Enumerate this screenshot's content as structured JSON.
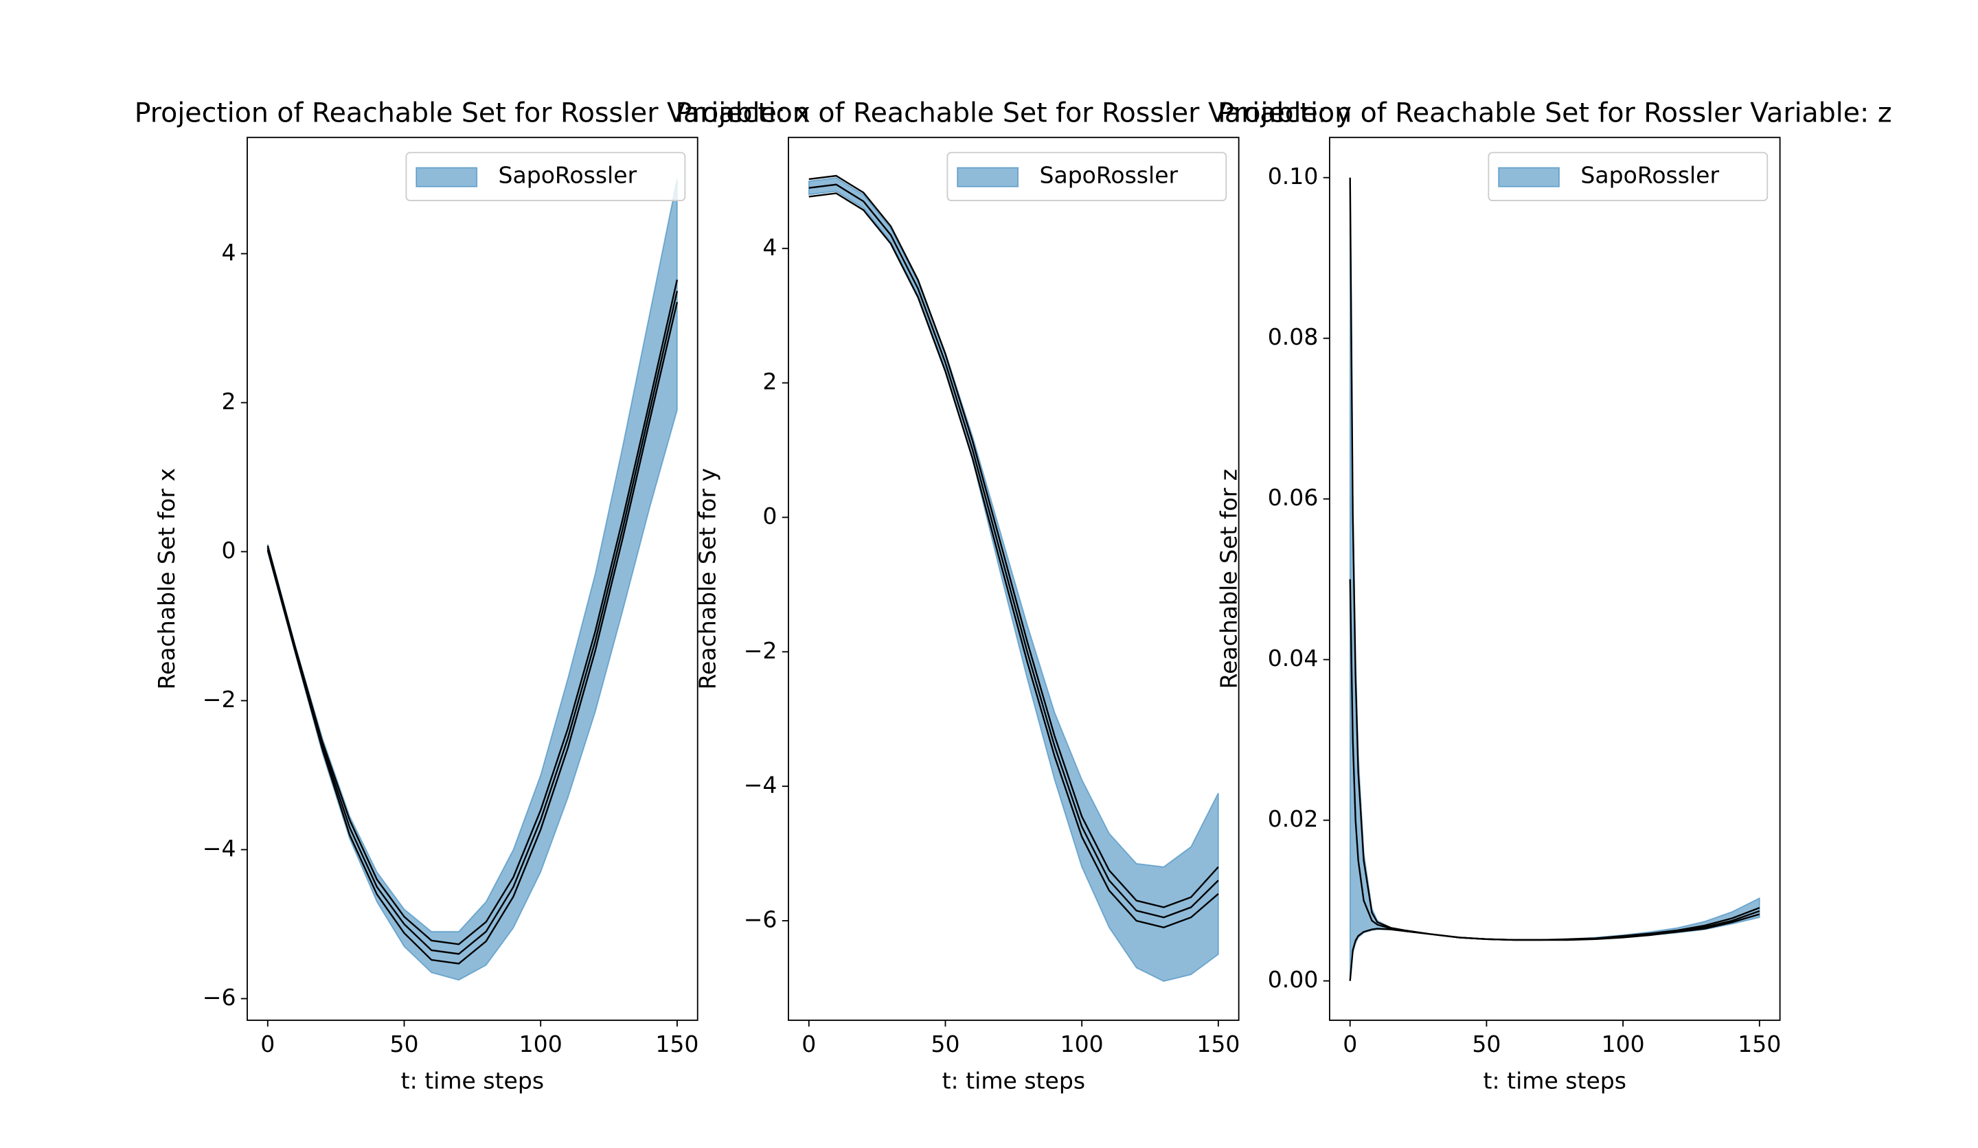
{
  "chart_data": [
    {
      "type": "band",
      "title": "Projection of Reachable Set for Rossler Variable: x",
      "xlabel": "t: time steps",
      "ylabel": "Reachable Set for x",
      "x": [
        0,
        10,
        20,
        30,
        40,
        50,
        60,
        70,
        80,
        90,
        100,
        110,
        120,
        130,
        140,
        150
      ],
      "series": [
        {
          "name": "SapoRossler",
          "color": "#1f77b4",
          "alpha": 0.5,
          "upper": [
            0.1,
            -1.25,
            -2.5,
            -3.55,
            -4.3,
            -4.8,
            -5.1,
            -5.1,
            -4.7,
            -4.0,
            -3.0,
            -1.7,
            -0.3,
            1.4,
            3.2,
            5.0
          ],
          "lower": [
            0.0,
            -1.35,
            -2.7,
            -3.85,
            -4.7,
            -5.3,
            -5.65,
            -5.75,
            -5.55,
            -5.05,
            -4.3,
            -3.3,
            -2.15,
            -0.8,
            0.6,
            1.9
          ]
        }
      ],
      "line_color": "#000000",
      "lines": [
        [
          0.08,
          -1.27,
          -2.55,
          -3.6,
          -4.4,
          -4.9,
          -5.22,
          -5.27,
          -4.97,
          -4.37,
          -3.47,
          -2.37,
          -1.07,
          0.43,
          2.03,
          3.65
        ],
        [
          0.05,
          -1.3,
          -2.6,
          -3.7,
          -4.5,
          -5.0,
          -5.35,
          -5.4,
          -5.1,
          -4.5,
          -3.6,
          -2.5,
          -1.2,
          0.3,
          1.9,
          3.5
        ],
        [
          0.02,
          -1.33,
          -2.65,
          -3.8,
          -4.6,
          -5.12,
          -5.48,
          -5.53,
          -5.23,
          -4.63,
          -3.73,
          -2.63,
          -1.33,
          0.17,
          1.77,
          3.35
        ]
      ],
      "xlim": [
        -7.5,
        157.5
      ],
      "ylim": [
        -6.29,
        5.56
      ],
      "xticks": [
        0,
        50,
        100,
        150
      ],
      "yticks": [
        {
          "value": -6,
          "label": "−6"
        },
        {
          "value": -4,
          "label": "−4"
        },
        {
          "value": -2,
          "label": "−2"
        },
        0,
        2,
        4
      ]
    },
    {
      "type": "band",
      "title": "Projection of Reachable Set for Rossler Variable: y",
      "xlabel": "t: time steps",
      "ylabel": "Reachable Set for y",
      "x": [
        0,
        10,
        20,
        30,
        40,
        50,
        60,
        70,
        80,
        90,
        100,
        110,
        120,
        130,
        140,
        150
      ],
      "series": [
        {
          "name": "SapoRossler",
          "color": "#1f77b4",
          "alpha": 0.5,
          "upper": [
            5.0,
            5.05,
            4.8,
            4.3,
            3.5,
            2.45,
            1.2,
            -0.2,
            -1.6,
            -2.9,
            -3.9,
            -4.7,
            -5.15,
            -5.2,
            -4.9,
            -4.1
          ],
          "lower": [
            4.8,
            4.85,
            4.6,
            4.1,
            3.3,
            2.2,
            0.85,
            -0.8,
            -2.4,
            -3.9,
            -5.2,
            -6.1,
            -6.7,
            -6.9,
            -6.8,
            -6.5
          ]
        }
      ],
      "line_color": "#000000",
      "lines": [
        [
          5.03,
          5.08,
          4.83,
          4.33,
          3.53,
          2.43,
          1.13,
          -0.35,
          -1.85,
          -3.25,
          -4.45,
          -5.25,
          -5.7,
          -5.8,
          -5.65,
          -5.2
        ],
        [
          4.9,
          4.95,
          4.7,
          4.2,
          3.4,
          2.3,
          1.0,
          -0.5,
          -2.0,
          -3.4,
          -4.6,
          -5.4,
          -5.85,
          -5.95,
          -5.8,
          -5.4
        ],
        [
          4.77,
          4.82,
          4.57,
          4.07,
          3.27,
          2.17,
          0.87,
          -0.65,
          -2.15,
          -3.55,
          -4.75,
          -5.55,
          -6.0,
          -6.1,
          -5.95,
          -5.6
        ]
      ],
      "xlim": [
        -7.5,
        157.5
      ],
      "ylim": [
        -7.48,
        5.65
      ],
      "xticks": [
        0,
        50,
        100,
        150
      ],
      "yticks": [
        {
          "value": -6,
          "label": "−6"
        },
        {
          "value": -4,
          "label": "−4"
        },
        {
          "value": -2,
          "label": "−2"
        },
        0,
        2,
        4
      ]
    },
    {
      "type": "band",
      "title": "Projection of Reachable Set for Rossler Variable: z",
      "xlabel": "t: time steps",
      "ylabel": "Reachable Set for z",
      "x": [
        0,
        1,
        2,
        3,
        5,
        8,
        10,
        15,
        20,
        30,
        40,
        50,
        60,
        70,
        80,
        90,
        100,
        110,
        120,
        130,
        140,
        150
      ],
      "series": [
        {
          "name": "SapoRossler",
          "color": "#1f77b4",
          "alpha": 0.5,
          "upper": [
            0.1,
            0.06,
            0.04,
            0.028,
            0.016,
            0.009,
            0.0075,
            0.0066,
            0.0063,
            0.0058,
            0.0054,
            0.0052,
            0.0051,
            0.0051,
            0.0052,
            0.0054,
            0.0057,
            0.0061,
            0.0066,
            0.0074,
            0.0086,
            0.0103
          ],
          "lower": [
            0.0,
            0.0035,
            0.0047,
            0.0054,
            0.006,
            0.0063,
            0.0064,
            0.0064,
            0.0062,
            0.0058,
            0.0054,
            0.0052,
            0.0051,
            0.0051,
            0.0051,
            0.0052,
            0.0054,
            0.0057,
            0.006,
            0.0064,
            0.0071,
            0.0079
          ]
        }
      ],
      "line_color": "#000000",
      "lines": [
        [
          0.1,
          0.058,
          0.038,
          0.026,
          0.015,
          0.0085,
          0.0073,
          0.0066,
          0.0063,
          0.0058,
          0.0054,
          0.0052,
          0.0051,
          0.0051,
          0.0052,
          0.0053,
          0.0056,
          0.0059,
          0.0063,
          0.0069,
          0.0078,
          0.0091
        ],
        [
          0.05,
          0.03,
          0.02,
          0.015,
          0.01,
          0.0075,
          0.007,
          0.0065,
          0.0062,
          0.0058,
          0.0054,
          0.0052,
          0.0051,
          0.0051,
          0.0051,
          0.0053,
          0.0055,
          0.0058,
          0.0062,
          0.0067,
          0.0075,
          0.0087
        ],
        [
          0.0,
          0.0038,
          0.005,
          0.0056,
          0.0061,
          0.0064,
          0.0065,
          0.0064,
          0.0062,
          0.0058,
          0.0054,
          0.0052,
          0.0051,
          0.0051,
          0.0051,
          0.0052,
          0.0054,
          0.0057,
          0.0061,
          0.0065,
          0.0073,
          0.0083
        ]
      ],
      "xlim": [
        -7.5,
        157.5
      ],
      "ylim": [
        -0.0049,
        0.105
      ],
      "xticks": [
        0,
        50,
        100,
        150
      ],
      "yticks": [
        {
          "value": 0,
          "label": "0.00"
        },
        {
          "value": 0.02,
          "label": "0.02"
        },
        {
          "value": 0.04,
          "label": "0.04"
        },
        {
          "value": 0.06,
          "label": "0.06"
        },
        {
          "value": 0.08,
          "label": "0.08"
        },
        {
          "value": 0.1,
          "label": "0.10"
        }
      ]
    }
  ]
}
